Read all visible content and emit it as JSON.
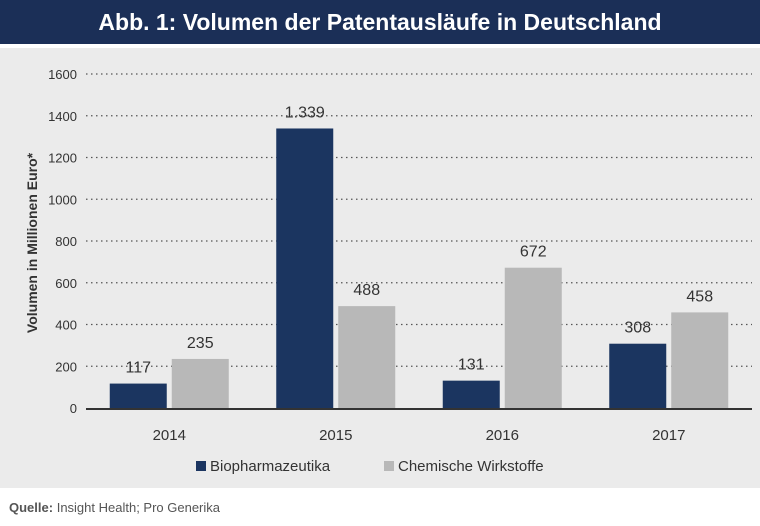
{
  "title": "Abb. 1: Volumen der Patentausläufe in Deutschland",
  "source": {
    "label": "Quelle:",
    "text": "Insight Health; Pro Generika"
  },
  "colors": {
    "title_bg": "#1b2f57",
    "panel_bg": "#ebebeb",
    "Biopharmazeutika": "#1b3560",
    "Chemische Wirkstoffe": "#b8b8b8"
  },
  "chart_data": {
    "type": "bar",
    "title": "",
    "xlabel": "",
    "ylabel": "Volumen in Millionen Euro*",
    "categories": [
      "2014",
      "2015",
      "2016",
      "2017"
    ],
    "series": [
      {
        "name": "Biopharmazeutika",
        "values": [
          117,
          1339,
          131,
          308
        ],
        "labels": [
          "117",
          "1.339",
          "131",
          "308"
        ]
      },
      {
        "name": "Chemische Wirkstoffe",
        "values": [
          235,
          488,
          672,
          458
        ],
        "labels": [
          "235",
          "488",
          "672",
          "458"
        ]
      }
    ],
    "ylim": [
      0,
      1600
    ],
    "yticks": [
      "0",
      "200",
      "400",
      "600",
      "800",
      "1000",
      "1200",
      "1400",
      "1600"
    ],
    "grid": true,
    "legend_position": "bottom"
  }
}
